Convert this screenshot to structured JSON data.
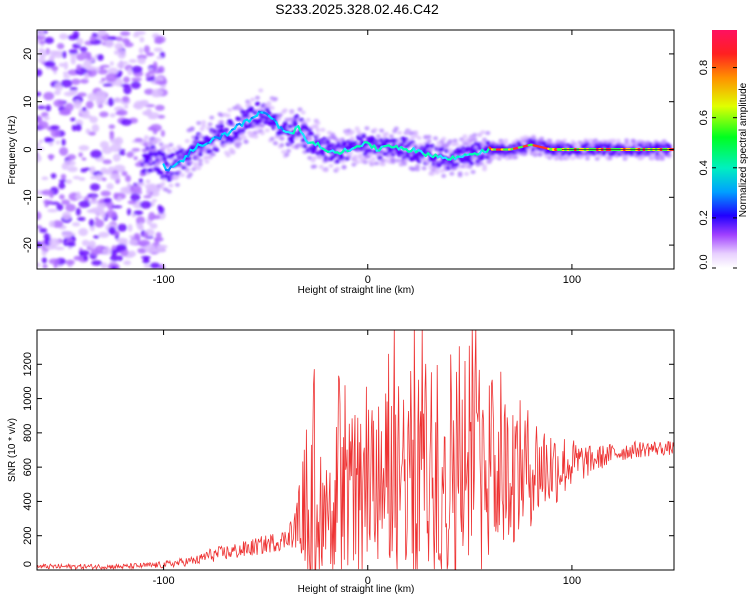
{
  "title": "S233.2025.328.02.46.C42",
  "chart_data": [
    {
      "type": "heatmap",
      "title": "S233.2025.328.02.46.C42",
      "xlabel": "Height of straight line (km)",
      "ylabel": "Frequency (Hz)",
      "xlim": [
        -162,
        150
      ],
      "ylim": [
        -25,
        25
      ],
      "xticks": [
        -100,
        0,
        100
      ],
      "yticks": [
        -20,
        -10,
        0,
        10,
        20
      ],
      "ridge": {
        "description_points_x": [
          -105,
          -98,
          -92,
          -86,
          -82,
          -76,
          -70,
          -64,
          -58,
          -52,
          -46,
          -42,
          -38,
          -34,
          -30,
          -25,
          -20,
          -15,
          -10,
          -5,
          0,
          5,
          10,
          20,
          30,
          40,
          50,
          60,
          70,
          80,
          90,
          100,
          110,
          120,
          130,
          140,
          148
        ],
        "description_points_y": [
          -2,
          -4,
          -3,
          0,
          1,
          2,
          3,
          5,
          6,
          8,
          6,
          4,
          3,
          5,
          2,
          1,
          0,
          -1,
          0,
          1,
          1,
          0,
          1,
          0,
          -1,
          -2,
          -1,
          0,
          0,
          1,
          0,
          0,
          0,
          0,
          0,
          0,
          0
        ]
      },
      "colorbar": {
        "label": "Normalized spectral amplitude",
        "range": [
          0.0,
          0.95
        ],
        "ticks": [
          0.0,
          0.2,
          0.4,
          0.6,
          0.8
        ],
        "tick_labels": [
          "0.0",
          "0.2",
          "0.4",
          "0.6",
          "0.8"
        ]
      }
    },
    {
      "type": "line",
      "xlabel": "Height of straight line (km)",
      "ylabel": "SNR (10 * v/v)",
      "xlim": [
        -162,
        150
      ],
      "ylim": [
        0,
        1400
      ],
      "xticks": [
        -100,
        0,
        100
      ],
      "yticks": [
        0,
        200,
        400,
        600,
        800,
        1000,
        1200
      ],
      "series": [
        {
          "name": "SNR",
          "color": "#ee3333",
          "envelope_x": [
            -162,
            -120,
            -100,
            -82,
            -80,
            -60,
            -40,
            -35,
            -32,
            -30,
            -25,
            -20,
            -10,
            0,
            10,
            20,
            25,
            30,
            40,
            45,
            50,
            55,
            60,
            70,
            80,
            90,
            100,
            110,
            120,
            130,
            140,
            150
          ],
          "envelope_base": [
            20,
            20,
            30,
            60,
            80,
            120,
            180,
            250,
            350,
            420,
            400,
            430,
            450,
            500,
            550,
            560,
            580,
            600,
            620,
            650,
            650,
            640,
            600,
            580,
            600,
            600,
            620,
            640,
            680,
            700,
            710,
            710
          ],
          "envelope_amp": [
            15,
            15,
            20,
            30,
            40,
            50,
            60,
            120,
            300,
            450,
            400,
            400,
            450,
            450,
            500,
            600,
            650,
            650,
            700,
            750,
            750,
            650,
            550,
            450,
            350,
            250,
            150,
            80,
            60,
            50,
            45,
            40
          ]
        }
      ]
    }
  ]
}
